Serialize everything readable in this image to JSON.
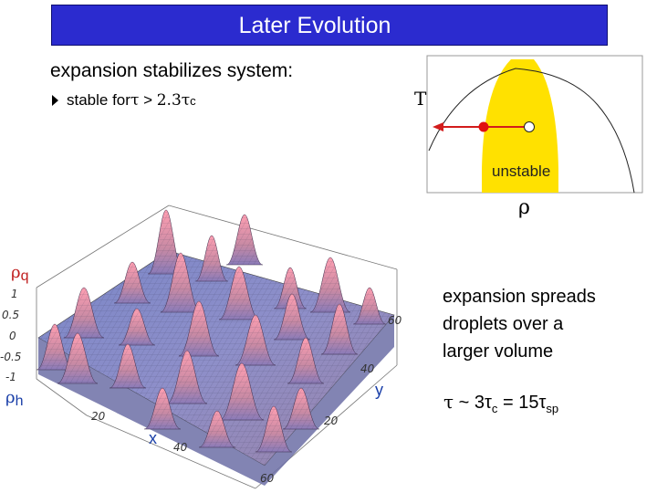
{
  "title": "Later Evolution",
  "line1": "expansion stabilizes system:",
  "bullet": {
    "prefix": "stable for ",
    "tau": "τ",
    "gt": " > ",
    "value": "2.3τ",
    "sub": "c"
  },
  "diagram": {
    "axis_y": "T",
    "axis_x": "ρ",
    "region_label": "unstable"
  },
  "plot": {
    "rho_q": {
      "main": "ρ",
      "sub": "q"
    },
    "rho_h": {
      "main": "ρ",
      "sub": "h"
    },
    "x_label": "x",
    "y_label": "y",
    "z_ticks": [
      "1",
      "0.5",
      "0",
      "-0.5",
      "-1"
    ],
    "x_ticks": [
      "20",
      "40",
      "60"
    ],
    "y_ticks": [
      "20",
      "40",
      "60"
    ]
  },
  "right_text": [
    "expansion spreads",
    "droplets over a",
    "larger volume"
  ],
  "formula": {
    "tau": "τ",
    "sim": " ~ ",
    "a": "3τ",
    "a_sub": "c",
    "eq": " = ",
    "b": "15τ",
    "b_sub": "sp"
  }
}
